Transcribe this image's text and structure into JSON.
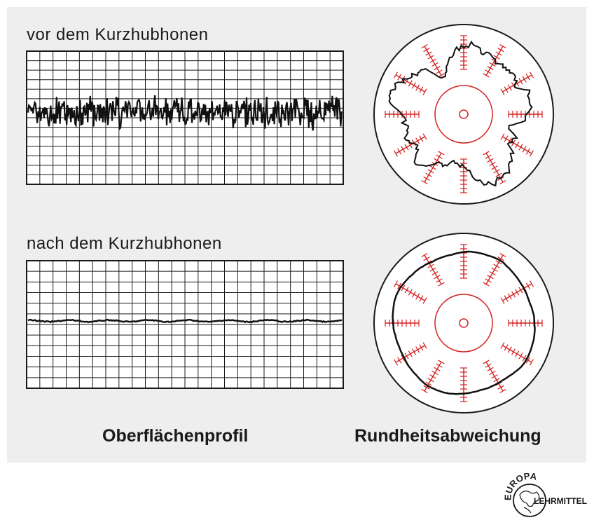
{
  "sections": {
    "before_label": "vor dem Kurzhubhonen",
    "after_label": "nach dem Kurzhubhonen"
  },
  "captions": {
    "profile": "Oberflächenprofil",
    "roundness": "Rundheitsabweichung"
  },
  "logo": {
    "top_text": "EUROPA",
    "side_text": "LEHRMITTEL"
  },
  "colors": {
    "panel": "#eeeeee",
    "scale_red": "#d42020",
    "trace": "#1a1a1a"
  }
}
